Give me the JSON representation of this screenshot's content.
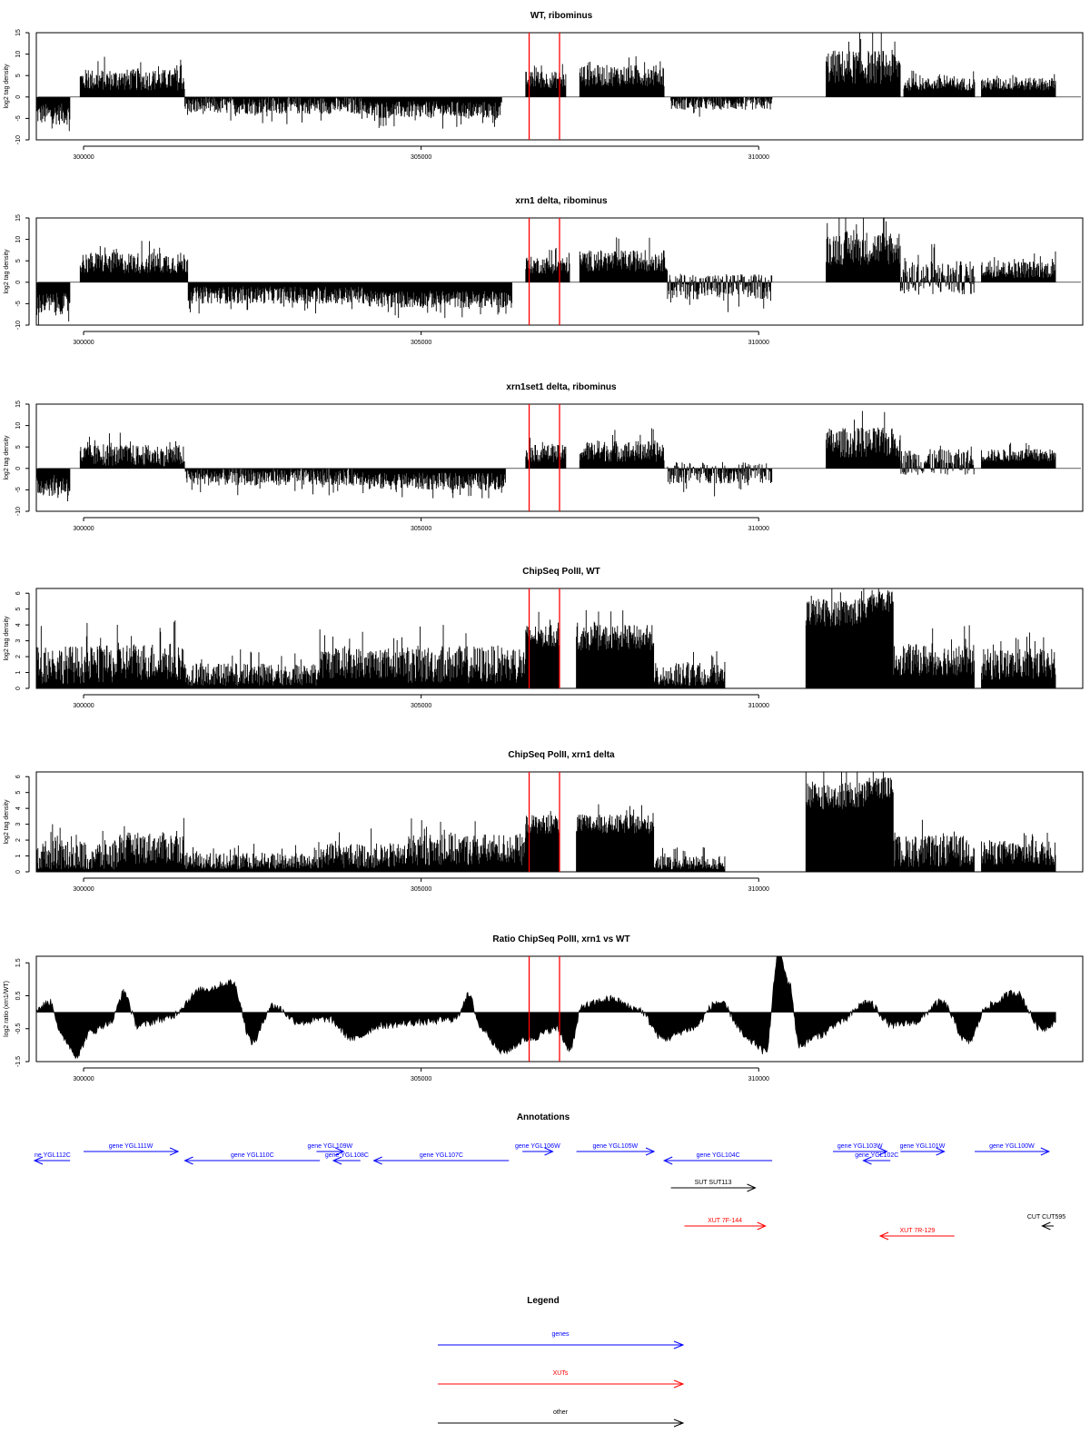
{
  "figure_xlim": [
    299300,
    314800
  ],
  "chart_data": [
    {
      "type": "area",
      "title": "WT, ribominus",
      "ylabel": "log2 tag density",
      "ylim": [
        -10,
        15
      ],
      "yticks": [
        15,
        10,
        5,
        0,
        -5,
        -10
      ],
      "ytick_labels": [
        "15",
        "10",
        "5",
        "0",
        "-5",
        "-10"
      ],
      "xticks": [
        300000,
        305000,
        310000
      ],
      "xtick_labels": [
        "300000",
        "305000",
        "310000"
      ],
      "marker_lines": {
        "color": "#ff0000",
        "positions": [
          306600,
          307050
        ]
      },
      "regions": [
        {
          "x": [
            299300,
            299800
          ],
          "mean": -4,
          "spread": 2.5
        },
        {
          "x": [
            299950,
            301500
          ],
          "mean": 4,
          "spread": 2.5
        },
        {
          "x": [
            301500,
            304200
          ],
          "mean": -2,
          "spread": 2
        },
        {
          "x": [
            304200,
            306200
          ],
          "mean": -3,
          "spread": 2
        },
        {
          "x": [
            306550,
            307150
          ],
          "mean": 4,
          "spread": 2
        },
        {
          "x": [
            307350,
            308600
          ],
          "mean": 5,
          "spread": 2.5
        },
        {
          "x": [
            308700,
            310200
          ],
          "mean": -1.5,
          "spread": 1.5
        },
        {
          "x": [
            311000,
            312100
          ],
          "mean": 7,
          "spread": 4
        },
        {
          "x": [
            312150,
            313200
          ],
          "mean": 3,
          "spread": 1.5
        },
        {
          "x": [
            313300,
            314400
          ],
          "mean": 3,
          "spread": 1.5
        }
      ]
    },
    {
      "type": "area",
      "title": "xrn1 delta, ribominus",
      "ylabel": "log2 tag density",
      "ylim": [
        -10,
        15
      ],
      "yticks": [
        15,
        10,
        5,
        0,
        -5,
        -10
      ],
      "ytick_labels": [
        "15",
        "10",
        "5",
        "0",
        "-5",
        "-10"
      ],
      "xticks": [
        300000,
        305000,
        310000
      ],
      "xtick_labels": [
        "300000",
        "305000",
        "310000"
      ],
      "marker_lines": {
        "color": "#ff0000",
        "positions": [
          306600,
          307050
        ]
      },
      "regions": [
        {
          "x": [
            299300,
            299800
          ],
          "mean": -5,
          "spread": 2.5
        },
        {
          "x": [
            299950,
            301550
          ],
          "mean": 4.5,
          "spread": 2.5
        },
        {
          "x": [
            301550,
            304200
          ],
          "mean": -3,
          "spread": 2
        },
        {
          "x": [
            304200,
            306350
          ],
          "mean": -4,
          "spread": 2
        },
        {
          "x": [
            306550,
            307200
          ],
          "mean": 4,
          "spread": 2
        },
        {
          "x": [
            307350,
            308650
          ],
          "mean": 5,
          "spread": 2.5
        },
        {
          "x": [
            308650,
            310200
          ],
          "mean": -1,
          "spread": 3
        },
        {
          "x": [
            311000,
            312100
          ],
          "mean": 8,
          "spread": 4
        },
        {
          "x": [
            312100,
            313200
          ],
          "mean": 1,
          "spread": 4
        },
        {
          "x": [
            313300,
            314400
          ],
          "mean": 3,
          "spread": 2
        }
      ]
    },
    {
      "type": "area",
      "title": "xrn1set1 delta, ribominus",
      "ylabel": "log2 tag density",
      "ylim": [
        -10,
        15
      ],
      "yticks": [
        15,
        10,
        5,
        0,
        -5,
        -10
      ],
      "ytick_labels": [
        "15",
        "10",
        "5",
        "0",
        "-5",
        "-10"
      ],
      "xticks": [
        300000,
        305000,
        310000
      ],
      "xtick_labels": [
        "300000",
        "305000",
        "310000"
      ],
      "marker_lines": {
        "color": "#ff0000",
        "positions": [
          306600,
          307050
        ]
      },
      "regions": [
        {
          "x": [
            299300,
            299800
          ],
          "mean": -4,
          "spread": 2.5
        },
        {
          "x": [
            299950,
            301500
          ],
          "mean": 3,
          "spread": 2.5
        },
        {
          "x": [
            301500,
            304200
          ],
          "mean": -2,
          "spread": 2
        },
        {
          "x": [
            304200,
            306250
          ],
          "mean": -3,
          "spread": 2
        },
        {
          "x": [
            306550,
            307150
          ],
          "mean": 3.5,
          "spread": 2
        },
        {
          "x": [
            307350,
            308600
          ],
          "mean": 4,
          "spread": 2.5
        },
        {
          "x": [
            308650,
            310200
          ],
          "mean": -1,
          "spread": 2.5
        },
        {
          "x": [
            311000,
            312100
          ],
          "mean": 6,
          "spread": 3.5
        },
        {
          "x": [
            312100,
            313200
          ],
          "mean": 1.5,
          "spread": 3
        },
        {
          "x": [
            313300,
            314400
          ],
          "mean": 3,
          "spread": 1.5
        }
      ]
    },
    {
      "type": "area",
      "title": "ChipSeq PolII, WT",
      "ylabel": "log2 tag density",
      "ylim": [
        0,
        6.3
      ],
      "yticks": [
        6,
        5,
        4,
        3,
        2,
        1,
        0
      ],
      "ytick_labels": [
        "6",
        "5",
        "4",
        "3",
        "2",
        "1",
        "0"
      ],
      "xticks": [
        300000,
        305000,
        310000
      ],
      "xtick_labels": [
        "300000",
        "305000",
        "310000"
      ],
      "marker_lines": {
        "color": "#ff0000",
        "positions": [
          306600,
          307050
        ]
      },
      "regions": [
        {
          "x": [
            299300,
            300500
          ],
          "mean": 1.5,
          "spread": 1.2
        },
        {
          "x": [
            300500,
            301500
          ],
          "mean": 1.7,
          "spread": 1.2
        },
        {
          "x": [
            301500,
            303500
          ],
          "mean": 0.8,
          "spread": 0.8
        },
        {
          "x": [
            303500,
            304800
          ],
          "mean": 1.6,
          "spread": 1.0
        },
        {
          "x": [
            304800,
            306550
          ],
          "mean": 1.5,
          "spread": 1.2
        },
        {
          "x": [
            306550,
            307050
          ],
          "mean": 3.3,
          "spread": 0.7
        },
        {
          "x": [
            307300,
            308450
          ],
          "mean": 3.2,
          "spread": 0.8
        },
        {
          "x": [
            308450,
            309500
          ],
          "mean": 0.8,
          "spread": 0.8
        },
        {
          "x": [
            310700,
            311600
          ],
          "mean": 4.8,
          "spread": 0.9
        },
        {
          "x": [
            311600,
            312000
          ],
          "mean": 5.5,
          "spread": 0.7
        },
        {
          "x": [
            312000,
            313200
          ],
          "mean": 1.8,
          "spread": 1.0
        },
        {
          "x": [
            313300,
            314400
          ],
          "mean": 1.5,
          "spread": 1.0
        }
      ]
    },
    {
      "type": "area",
      "title": "ChipSeq PolII, xrn1 delta",
      "ylabel": "log2 tag density",
      "ylim": [
        0,
        6.3
      ],
      "yticks": [
        6,
        5,
        4,
        3,
        2,
        1,
        0
      ],
      "ytick_labels": [
        "6",
        "5",
        "4",
        "3",
        "2",
        "1",
        "0"
      ],
      "xticks": [
        300000,
        305000,
        310000
      ],
      "xtick_labels": [
        "300000",
        "305000",
        "310000"
      ],
      "marker_lines": {
        "color": "#ff0000",
        "positions": [
          306600,
          307050
        ]
      },
      "regions": [
        {
          "x": [
            299300,
            300500
          ],
          "mean": 1.0,
          "spread": 1.0
        },
        {
          "x": [
            300500,
            301500
          ],
          "mean": 1.5,
          "spread": 1.0
        },
        {
          "x": [
            301500,
            303500
          ],
          "mean": 0.6,
          "spread": 0.6
        },
        {
          "x": [
            303500,
            304800
          ],
          "mean": 1.0,
          "spread": 0.8
        },
        {
          "x": [
            304800,
            306550
          ],
          "mean": 1.4,
          "spread": 1.0
        },
        {
          "x": [
            306550,
            307050
          ],
          "mean": 3.0,
          "spread": 0.6
        },
        {
          "x": [
            307300,
            308450
          ],
          "mean": 3.0,
          "spread": 0.6
        },
        {
          "x": [
            308450,
            309500
          ],
          "mean": 0.5,
          "spread": 0.5
        },
        {
          "x": [
            310700,
            311600
          ],
          "mean": 4.8,
          "spread": 0.9
        },
        {
          "x": [
            311600,
            312000
          ],
          "mean": 5.3,
          "spread": 0.7
        },
        {
          "x": [
            312000,
            313200
          ],
          "mean": 1.3,
          "spread": 1.0
        },
        {
          "x": [
            313300,
            314400
          ],
          "mean": 1.2,
          "spread": 0.8
        }
      ]
    },
    {
      "type": "area",
      "title": "Ratio ChipSeq PolII, xrn1 vs WT",
      "ylabel": "log2 ratio (xrn1/WT)",
      "ylim": [
        -1.5,
        1.7
      ],
      "yticks": [
        1.5,
        0.5,
        -0.5,
        -1.5
      ],
      "ytick_labels": [
        "1.5",
        "0.5",
        "-0.5",
        "-1.5"
      ],
      "xticks": [
        300000,
        305000,
        310000
      ],
      "xtick_labels": [
        "300000",
        "305000",
        "310000"
      ],
      "marker_lines": {
        "color": "#ff0000",
        "positions": [
          306600,
          307050
        ]
      },
      "profile": [
        [
          299300,
          0.1
        ],
        [
          299500,
          0.3
        ],
        [
          299700,
          -0.8
        ],
        [
          299900,
          -1.3
        ],
        [
          300100,
          -0.6
        ],
        [
          300400,
          -0.3
        ],
        [
          300600,
          0.6
        ],
        [
          300800,
          -0.4
        ],
        [
          301200,
          -0.2
        ],
        [
          301800,
          0.7
        ],
        [
          302200,
          0.9
        ],
        [
          302500,
          -0.9
        ],
        [
          302800,
          0.2
        ],
        [
          303200,
          -0.3
        ],
        [
          303600,
          -0.2
        ],
        [
          304000,
          -0.8
        ],
        [
          304400,
          -0.4
        ],
        [
          305000,
          -0.3
        ],
        [
          305500,
          -0.2
        ],
        [
          305700,
          0.5
        ],
        [
          305900,
          -0.5
        ],
        [
          306200,
          -1.2
        ],
        [
          306600,
          -0.8
        ],
        [
          307000,
          -0.5
        ],
        [
          307200,
          -1.1
        ],
        [
          307400,
          0.2
        ],
        [
          307800,
          0.4
        ],
        [
          308200,
          0.1
        ],
        [
          308600,
          -0.8
        ],
        [
          309000,
          -0.5
        ],
        [
          309400,
          0.3
        ],
        [
          309900,
          -0.9
        ],
        [
          310100,
          -1.2
        ],
        [
          310300,
          1.8
        ],
        [
          310450,
          0.9
        ],
        [
          310600,
          -1.0
        ],
        [
          310900,
          -0.7
        ],
        [
          311200,
          -0.3
        ],
        [
          311600,
          0.3
        ],
        [
          312000,
          -0.4
        ],
        [
          312300,
          -0.3
        ],
        [
          312700,
          0.3
        ],
        [
          313100,
          -0.9
        ],
        [
          313400,
          0.2
        ],
        [
          313800,
          0.6
        ],
        [
          314200,
          -0.5
        ],
        [
          314400,
          -0.3
        ]
      ]
    }
  ],
  "annotations": {
    "title": "Annotations",
    "features": [
      {
        "label": "ne YGL112C",
        "x1": 298800,
        "x2": 299800,
        "strand": "-",
        "color": "#0000ff",
        "track": 2
      },
      {
        "label": "gene YGL111W",
        "x1": 300000,
        "x2": 301400,
        "strand": "+",
        "color": "#0000ff",
        "track": 1
      },
      {
        "label": "gene YGL110C",
        "x1": 301500,
        "x2": 303500,
        "strand": "-",
        "color": "#0000ff",
        "track": 2
      },
      {
        "label": "gene YGL109W",
        "x1": 303450,
        "x2": 303850,
        "strand": "+",
        "color": "#0000ff",
        "track": 1
      },
      {
        "label": "gene YGL108C",
        "x1": 303700,
        "x2": 304100,
        "strand": "-",
        "color": "#0000ff",
        "track": 2
      },
      {
        "label": "gene YGL107C",
        "x1": 304300,
        "x2": 306300,
        "strand": "-",
        "color": "#0000ff",
        "track": 2
      },
      {
        "label": "gene YGL106W",
        "x1": 306500,
        "x2": 306950,
        "strand": "+",
        "color": "#0000ff",
        "track": 1
      },
      {
        "label": "gene YGL105W",
        "x1": 307300,
        "x2": 308450,
        "strand": "+",
        "color": "#0000ff",
        "track": 1
      },
      {
        "label": "gene YGL104C",
        "x1": 308600,
        "x2": 310200,
        "strand": "-",
        "color": "#0000ff",
        "track": 2
      },
      {
        "label": "gene YGL103W",
        "x1": 311100,
        "x2": 311900,
        "strand": "+",
        "color": "#0000ff",
        "track": 1
      },
      {
        "label": "gene YGL102C",
        "x1": 311550,
        "x2": 311950,
        "strand": "-",
        "color": "#0000ff",
        "track": 2
      },
      {
        "label": "gene YGL101W",
        "x1": 312100,
        "x2": 312750,
        "strand": "+",
        "color": "#0000ff",
        "track": 1
      },
      {
        "label": "gene YGL100W",
        "x1": 313200,
        "x2": 314300,
        "strand": "+",
        "color": "#0000ff",
        "track": 1
      },
      {
        "label": "SUT SUT113",
        "x1": 308700,
        "x2": 309950,
        "strand": "+",
        "color": "#000000",
        "track": 3
      },
      {
        "label": "XUT 7F-144",
        "x1": 308900,
        "x2": 310100,
        "strand": "+",
        "color": "#ff0000",
        "track": 4
      },
      {
        "label": "XUT 7R-129",
        "x1": 311800,
        "x2": 312900,
        "strand": "-",
        "color": "#ff0000",
        "track": 5
      },
      {
        "label": "CUT CUT595",
        "x1": 314200,
        "x2": 314400,
        "strand": "-",
        "color": "#000000",
        "track": 4
      }
    ]
  },
  "legend": {
    "title": "Legend",
    "items": [
      {
        "label": "genes",
        "color": "#0000ff"
      },
      {
        "label": "XUTs",
        "color": "#ff0000"
      },
      {
        "label": "other",
        "color": "#000000"
      }
    ]
  }
}
